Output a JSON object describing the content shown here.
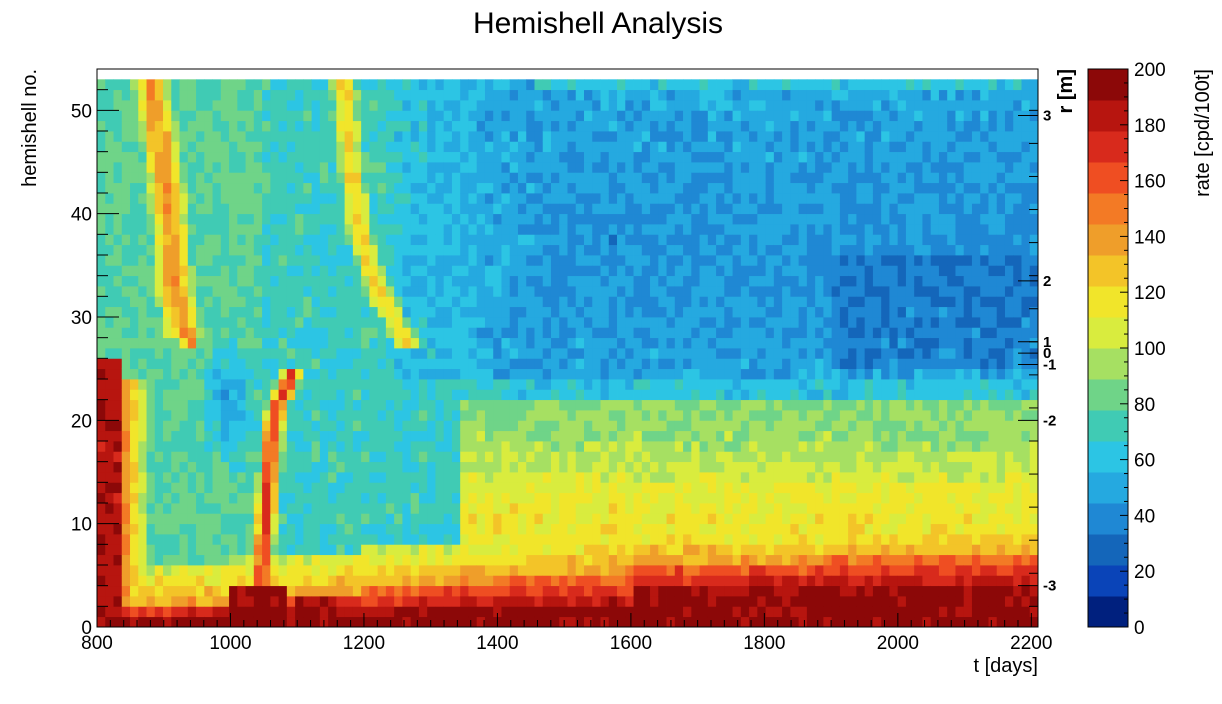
{
  "chart_data": {
    "type": "heatmap",
    "title": "Hemishell Analysis",
    "xlabel": "t [days]",
    "ylabel": "hemishell no.",
    "xlim": [
      800,
      2210
    ],
    "ylim": [
      0,
      54
    ],
    "x_ticks": [
      800,
      1000,
      1200,
      1400,
      1600,
      1800,
      2000,
      2200
    ],
    "y_ticks": [
      0,
      10,
      20,
      30,
      40,
      50
    ],
    "right_axis": {
      "label": "r [m]",
      "ticks": [
        {
          "label": "3",
          "hemishell": 49.5
        },
        {
          "label": "2",
          "hemishell": 33.5
        },
        {
          "label": "1",
          "hemishell": 27.6
        },
        {
          "label": "0",
          "hemishell": 26.5
        },
        {
          "label": "-1",
          "hemishell": 25.4
        },
        {
          "label": "-2",
          "hemishell": 20
        },
        {
          "label": "-3",
          "hemishell": 4
        }
      ]
    },
    "colorbar": {
      "label": "rate [cpd/100t]",
      "min": 0,
      "max": 200,
      "ticks": [
        0,
        20,
        40,
        60,
        80,
        100,
        120,
        140,
        160,
        180,
        200
      ],
      "levels": [
        "#00207e",
        "#0a44b8",
        "#1466ba",
        "#1f88d4",
        "#25a9e0",
        "#2cc5e4",
        "#40cbb4",
        "#6fd488",
        "#a6e062",
        "#d9ec3e",
        "#f1e52a",
        "#f3c428",
        "#ef9e2a",
        "#f37a25",
        "#ef4e22",
        "#d82a1c",
        "#b7150f",
        "#8c0808"
      ]
    },
    "grid": {
      "t_start": 800,
      "t_end": 2210,
      "t_bins": 114,
      "hemishell_bins": 53
    },
    "features": [
      {
        "desc": "outer_bottom",
        "t": [
          [
            800,
            0
          ],
          [
            1000,
            1.5
          ],
          [
            1200,
            2.3
          ],
          [
            1400,
            3.5
          ],
          [
            1600,
            6
          ],
          [
            1700,
            6.5
          ],
          [
            2210,
            7
          ]
        ]
      },
      {
        "desc": "inner_bottom_band",
        "t": [
          [
            800,
            0
          ],
          [
            1600,
            1.5
          ],
          [
            1660,
            3
          ],
          [
            2210,
            4
          ]
        ]
      },
      {
        "desc": "left_red_column",
        "t_center": 815,
        "t_width": 18,
        "h_top": 26,
        "value": 180
      },
      {
        "desc": "left_plume",
        "points": [
          [
            880,
            53
          ],
          [
            900,
            45
          ],
          [
            910,
            38
          ],
          [
            920,
            32
          ],
          [
            930,
            28
          ],
          [
            960,
            27
          ]
        ],
        "value": 140
      },
      {
        "desc": "middle_spike",
        "points": [
          [
            1040,
            0
          ],
          [
            1050,
            8
          ],
          [
            1060,
            16
          ],
          [
            1070,
            22
          ],
          [
            1095,
            25
          ]
        ],
        "value": 170
      },
      {
        "desc": "right_plume",
        "points": [
          [
            1170,
            53
          ],
          [
            1180,
            45
          ],
          [
            1200,
            38
          ],
          [
            1230,
            32
          ],
          [
            1270,
            27
          ]
        ],
        "value": 125
      },
      {
        "desc": "blue_blob_left",
        "t_center": 1000,
        "h_center": 22,
        "value": 45
      },
      {
        "desc": "blue_region",
        "t_start": 1450,
        "h_range": [
          25,
          50
        ],
        "value": 40
      }
    ]
  }
}
